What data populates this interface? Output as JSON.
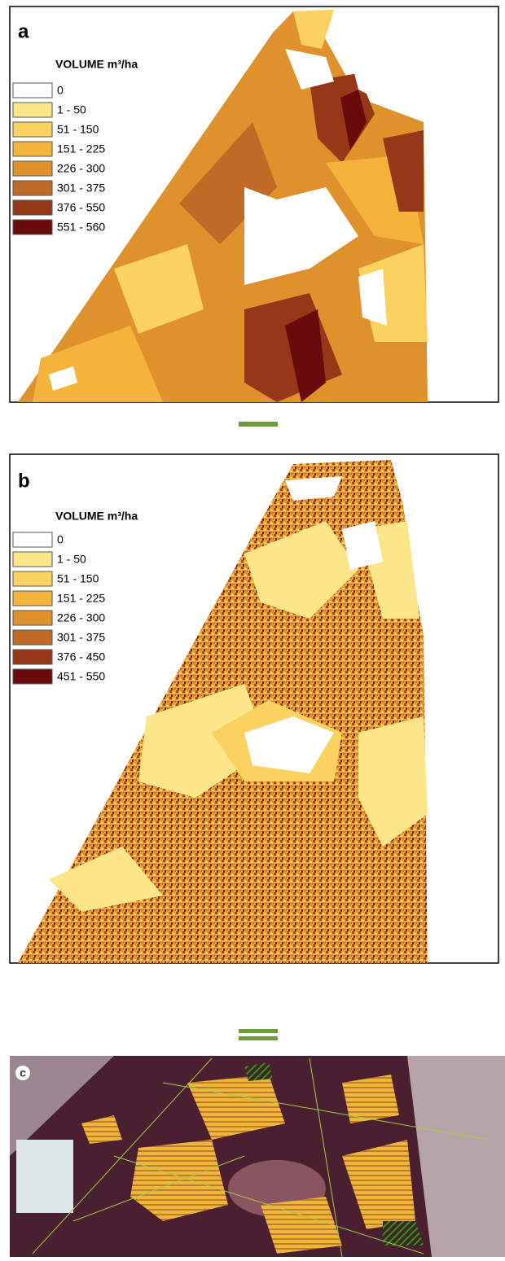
{
  "panels": [
    {
      "label": "a",
      "legend_title": "VOLUME m³/ha",
      "legend": [
        {
          "label": "0",
          "color": "#ffffff"
        },
        {
          "label": "1 - 50",
          "color": "#fde68a"
        },
        {
          "label": "51 - 150",
          "color": "#fbd160"
        },
        {
          "label": "151 - 225",
          "color": "#f4b43a"
        },
        {
          "label": "226 - 300",
          "color": "#df922b"
        },
        {
          "label": "301 - 375",
          "color": "#bf6a26"
        },
        {
          "label": "376 - 550",
          "color": "#963818"
        },
        {
          "label": "551 - 560",
          "color": "#690b0b"
        }
      ]
    },
    {
      "label": "b",
      "legend_title": "VOLUME m³/ha",
      "legend": [
        {
          "label": "0",
          "color": "#ffffff"
        },
        {
          "label": "1 - 50",
          "color": "#fde68a"
        },
        {
          "label": "51 - 150",
          "color": "#fbd160"
        },
        {
          "label": "151 - 225",
          "color": "#f4b43a"
        },
        {
          "label": "226 - 300",
          "color": "#df922b"
        },
        {
          "label": "301 - 375",
          "color": "#bf6a26"
        },
        {
          "label": "376 - 450",
          "color": "#963818"
        },
        {
          "label": "451 - 550",
          "color": "#690b0b"
        }
      ]
    },
    {
      "label": "c"
    }
  ]
}
